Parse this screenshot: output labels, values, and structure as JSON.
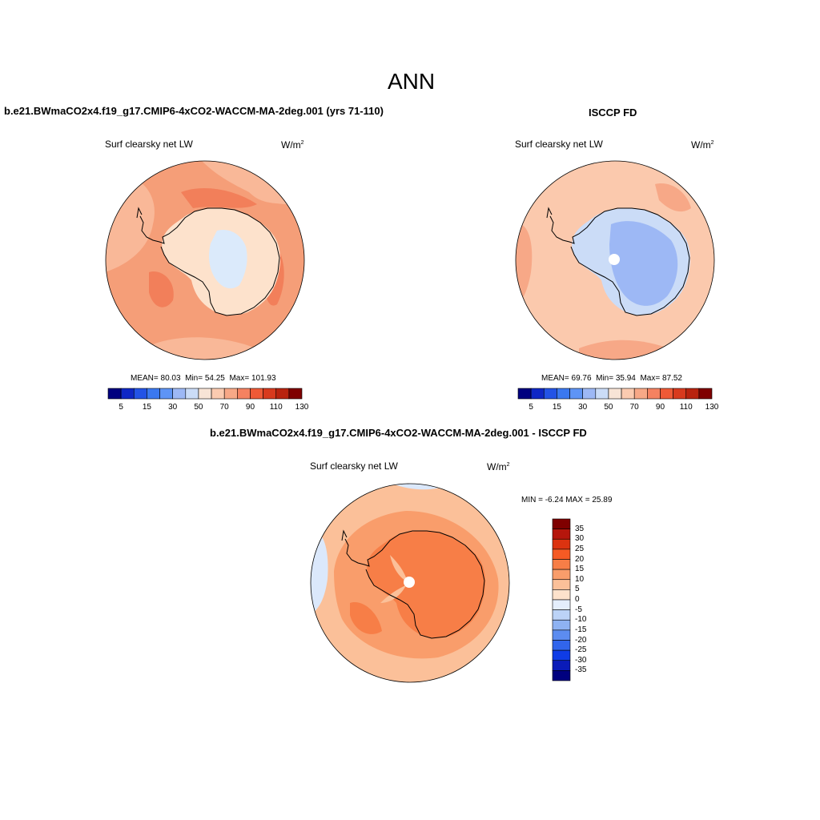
{
  "season": "ANN",
  "units_base": "W/m",
  "units_exp": "2",
  "panels": [
    {
      "title": "b.e21.BWmaCO2x4.f19_g17.CMIP6-4xCO2-WACCM-MA-2deg.001 (yrs 71-110)",
      "variable": "Surf clearsky net LW",
      "mean_label": "MEAN=",
      "mean": "80.03",
      "min_label": "Min=",
      "min": "54.25",
      "max_label": "Max=",
      "max": "101.93"
    },
    {
      "title": "ISCCP FD",
      "variable": "Surf clearsky net LW",
      "mean_label": "MEAN=",
      "mean": "69.76",
      "min_label": "Min=",
      "min": "35.94",
      "max_label": "Max=",
      "max": "87.52"
    }
  ],
  "diff_panel": {
    "title": "b.e21.BWmaCO2x4.f19_g17.CMIP6-4xCO2-WACCM-MA-2deg.001 - ISCCP FD",
    "variable": "Surf clearsky net LW",
    "minmax_text": "MIN =  -6.24 MAX =  25.89"
  },
  "abs_colorbar": {
    "colors": [
      "#00007f",
      "#0f27c6",
      "#2353e6",
      "#3b78f0",
      "#5e94f5",
      "#9db8f5",
      "#cbdcf7",
      "#f8e4d6",
      "#fbcbb0",
      "#f7a887",
      "#f58261",
      "#ef5a37",
      "#d83a1e",
      "#b8230f",
      "#7f0000"
    ],
    "tick_labels": [
      "5",
      "15",
      "30",
      "50",
      "70",
      "90",
      "110",
      "130"
    ]
  },
  "diff_colorbar": {
    "colors": [
      "#7f0000",
      "#b5160c",
      "#dc3310",
      "#f55a24",
      "#f77e47",
      "#f99d6b",
      "#fbc099",
      "#fde2cc",
      "#e4eefc",
      "#bcd3f7",
      "#8eb2f2",
      "#5c8cf0",
      "#3165ec",
      "#0f3ce6",
      "#0a1bb8",
      "#00007f"
    ],
    "tick_labels": [
      "35",
      "30",
      "25",
      "20",
      "15",
      "10",
      "5",
      "0",
      "-5",
      "-10",
      "-15",
      "-20",
      "-25",
      "-30",
      "-35"
    ]
  },
  "map_colors": {
    "ocean_mod": "#f59e78",
    "ocean_mod_light": "#f9b898",
    "ocean_mod_dark": "#f27f5a",
    "ant_mod": "#fde2cc",
    "ant_mod_core": "#dbeafb",
    "ocean_obs": "#fbc9ad",
    "ocean_obs_warm": "#f7a887",
    "ant_obs": "#cbdcf7",
    "ant_obs_core": "#9db8f5",
    "diff_base": "#f99d6b",
    "diff_light": "#fbc099",
    "diff_strong": "#f77e47",
    "diff_blue": "#dbe8fb",
    "coast": "#000000"
  }
}
